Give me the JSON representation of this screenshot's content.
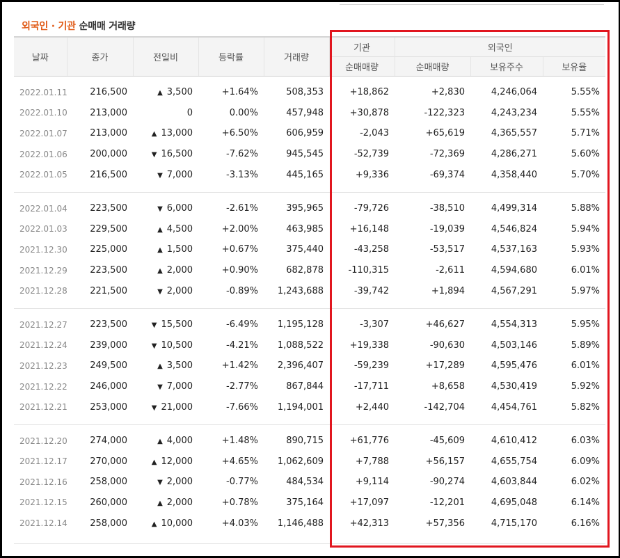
{
  "title": {
    "part1": "외국인 · 기관",
    "part2": "순매매 거래량"
  },
  "headers": {
    "date": "날짜",
    "close": "종가",
    "change": "전일비",
    "rate": "등락률",
    "volume": "거래량",
    "institution": "기관",
    "foreigner": "외국인",
    "inst_net": "순매매량",
    "for_net": "순매매량",
    "for_hold": "보유주수",
    "for_ratio": "보유율"
  },
  "colors": {
    "up": "#d6202a",
    "down": "#1a57b4",
    "highlight_box": "#e1161f",
    "title_accent": "#e05a16"
  },
  "groups": [
    {
      "rows": [
        {
          "date": "2022.01.11",
          "close": "216,500",
          "dir": "up",
          "change": "3,500",
          "rate": "+1.64%",
          "volume": "508,353",
          "inst": "+18,862",
          "foreign": "+2,830",
          "hold": "4,246,064",
          "ratio": "5.55%"
        },
        {
          "date": "2022.01.10",
          "close": "213,000",
          "dir": "flat",
          "change": "0",
          "rate": "0.00%",
          "volume": "457,948",
          "inst": "+30,878",
          "foreign": "-122,323",
          "hold": "4,243,234",
          "ratio": "5.55%"
        },
        {
          "date": "2022.01.07",
          "close": "213,000",
          "dir": "up",
          "change": "13,000",
          "rate": "+6.50%",
          "volume": "606,959",
          "inst": "-2,043",
          "foreign": "+65,619",
          "hold": "4,365,557",
          "ratio": "5.71%"
        },
        {
          "date": "2022.01.06",
          "close": "200,000",
          "dir": "down",
          "change": "16,500",
          "rate": "-7.62%",
          "volume": "945,545",
          "inst": "-52,739",
          "foreign": "-72,369",
          "hold": "4,286,271",
          "ratio": "5.60%"
        },
        {
          "date": "2022.01.05",
          "close": "216,500",
          "dir": "down",
          "change": "7,000",
          "rate": "-3.13%",
          "volume": "445,165",
          "inst": "+9,336",
          "foreign": "-69,374",
          "hold": "4,358,440",
          "ratio": "5.70%"
        }
      ]
    },
    {
      "rows": [
        {
          "date": "2022.01.04",
          "close": "223,500",
          "dir": "down",
          "change": "6,000",
          "rate": "-2.61%",
          "volume": "395,965",
          "inst": "-79,726",
          "foreign": "-38,510",
          "hold": "4,499,314",
          "ratio": "5.88%"
        },
        {
          "date": "2022.01.03",
          "close": "229,500",
          "dir": "up",
          "change": "4,500",
          "rate": "+2.00%",
          "volume": "463,985",
          "inst": "+16,148",
          "foreign": "-19,039",
          "hold": "4,546,824",
          "ratio": "5.94%"
        },
        {
          "date": "2021.12.30",
          "close": "225,000",
          "dir": "up",
          "change": "1,500",
          "rate": "+0.67%",
          "volume": "375,440",
          "inst": "-43,258",
          "foreign": "-53,517",
          "hold": "4,537,163",
          "ratio": "5.93%"
        },
        {
          "date": "2021.12.29",
          "close": "223,500",
          "dir": "up",
          "change": "2,000",
          "rate": "+0.90%",
          "volume": "682,878",
          "inst": "-110,315",
          "foreign": "-2,611",
          "hold": "4,594,680",
          "ratio": "6.01%"
        },
        {
          "date": "2021.12.28",
          "close": "221,500",
          "dir": "down",
          "change": "2,000",
          "rate": "-0.89%",
          "volume": "1,243,688",
          "inst": "-39,742",
          "foreign": "+1,894",
          "hold": "4,567,291",
          "ratio": "5.97%"
        }
      ]
    },
    {
      "rows": [
        {
          "date": "2021.12.27",
          "close": "223,500",
          "dir": "down",
          "change": "15,500",
          "rate": "-6.49%",
          "volume": "1,195,128",
          "inst": "-3,307",
          "foreign": "+46,627",
          "hold": "4,554,313",
          "ratio": "5.95%"
        },
        {
          "date": "2021.12.24",
          "close": "239,000",
          "dir": "down",
          "change": "10,500",
          "rate": "-4.21%",
          "volume": "1,088,522",
          "inst": "+19,338",
          "foreign": "-90,630",
          "hold": "4,503,146",
          "ratio": "5.89%"
        },
        {
          "date": "2021.12.23",
          "close": "249,500",
          "dir": "up",
          "change": "3,500",
          "rate": "+1.42%",
          "volume": "2,396,407",
          "inst": "-59,239",
          "foreign": "+17,289",
          "hold": "4,595,476",
          "ratio": "6.01%"
        },
        {
          "date": "2021.12.22",
          "close": "246,000",
          "dir": "down",
          "change": "7,000",
          "rate": "-2.77%",
          "volume": "867,844",
          "inst": "-17,711",
          "foreign": "+8,658",
          "hold": "4,530,419",
          "ratio": "5.92%"
        },
        {
          "date": "2021.12.21",
          "close": "253,000",
          "dir": "down",
          "change": "21,000",
          "rate": "-7.66%",
          "volume": "1,194,001",
          "inst": "+2,440",
          "foreign": "-142,704",
          "hold": "4,454,761",
          "ratio": "5.82%"
        }
      ]
    },
    {
      "rows": [
        {
          "date": "2021.12.20",
          "close": "274,000",
          "dir": "up",
          "change": "4,000",
          "rate": "+1.48%",
          "volume": "890,715",
          "inst": "+61,776",
          "foreign": "-45,609",
          "hold": "4,610,412",
          "ratio": "6.03%"
        },
        {
          "date": "2021.12.17",
          "close": "270,000",
          "dir": "up",
          "change": "12,000",
          "rate": "+4.65%",
          "volume": "1,062,609",
          "inst": "+7,788",
          "foreign": "+56,157",
          "hold": "4,655,754",
          "ratio": "6.09%"
        },
        {
          "date": "2021.12.16",
          "close": "258,000",
          "dir": "down",
          "change": "2,000",
          "rate": "-0.77%",
          "volume": "484,534",
          "inst": "+9,114",
          "foreign": "-90,274",
          "hold": "4,603,844",
          "ratio": "6.02%"
        },
        {
          "date": "2021.12.15",
          "close": "260,000",
          "dir": "up",
          "change": "2,000",
          "rate": "+0.78%",
          "volume": "375,164",
          "inst": "+17,097",
          "foreign": "-12,201",
          "hold": "4,695,048",
          "ratio": "6.14%"
        },
        {
          "date": "2021.12.14",
          "close": "258,000",
          "dir": "up",
          "change": "10,000",
          "rate": "+4.03%",
          "volume": "1,146,488",
          "inst": "+42,313",
          "foreign": "+57,356",
          "hold": "4,715,170",
          "ratio": "6.16%"
        }
      ]
    }
  ]
}
